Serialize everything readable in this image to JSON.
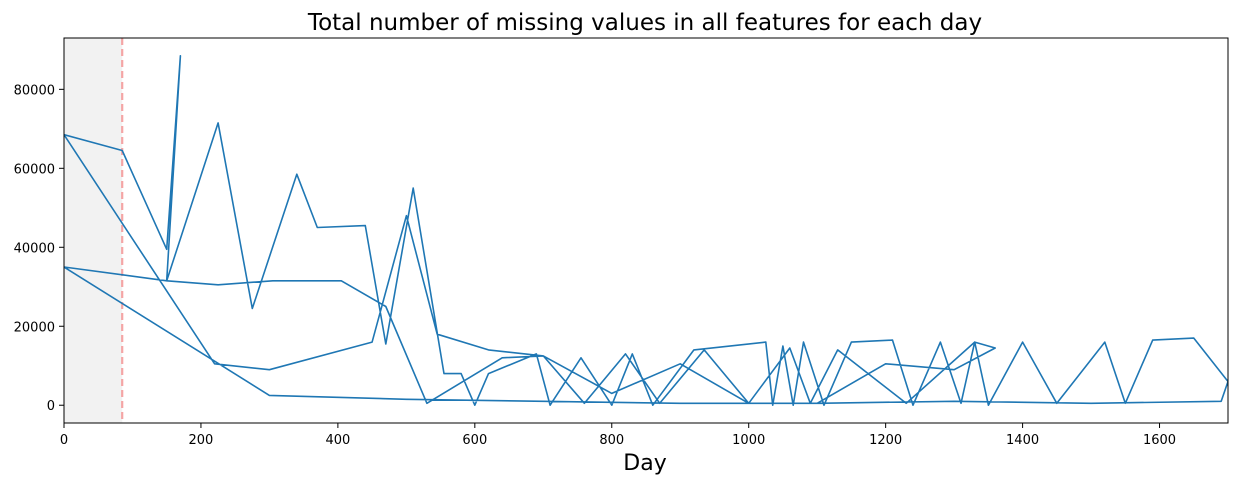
{
  "chart_data": {
    "type": "line",
    "title": "Total number of missing values in all features for each day",
    "xlabel": "Day",
    "ylabel": "",
    "xlim": [
      0,
      1700
    ],
    "ylim": [
      -4500,
      93000
    ],
    "x_ticks": [
      0,
      200,
      400,
      600,
      800,
      1000,
      1200,
      1400,
      1600
    ],
    "y_ticks": [
      0,
      20000,
      40000,
      60000,
      80000
    ],
    "grid": false,
    "legend": "none",
    "line_color": "#1f77b4",
    "shaded_region": {
      "x_start": 0,
      "x_end": 85,
      "color": "#f2f2f2"
    },
    "vline": {
      "x": 85,
      "color": "#f4a5a5",
      "style": "dashed"
    },
    "series": [
      {
        "x": [
          0,
          85,
          150,
          170,
          150,
          225,
          275,
          340,
          370,
          440,
          470,
          510,
          555,
          580,
          600,
          620,
          690,
          710,
          755,
          800,
          830,
          860,
          920,
          1025,
          1035,
          1050,
          1065,
          1080,
          1110,
          1150,
          1210,
          1240,
          1280,
          1310,
          1330,
          1350,
          1400,
          1450,
          1520,
          1550,
          1590,
          1650,
          1700,
          1690,
          1500,
          1300,
          1100,
          900,
          700,
          500,
          300,
          0,
          150,
          225,
          305,
          405,
          470,
          530,
          640,
          700,
          760,
          820,
          870,
          935,
          1000,
          1060,
          1090,
          1130,
          1230,
          1330,
          1360,
          1300,
          1200,
          1100,
          1000,
          900,
          800,
          700,
          620,
          545,
          500,
          450,
          300,
          220,
          0
        ],
        "y": [
          68500,
          64500,
          39500,
          88500,
          31500,
          71500,
          24500,
          58500,
          45000,
          45500,
          15500,
          55000,
          8000,
          8000,
          0,
          8000,
          13000,
          0,
          12000,
          0,
          13000,
          0,
          14000,
          16000,
          0,
          15000,
          0,
          16000,
          0,
          16000,
          16500,
          0,
          16000,
          500,
          16000,
          0,
          16000,
          500,
          16000,
          500,
          16500,
          17000,
          6000,
          1000,
          500,
          1000,
          500,
          500,
          1000,
          1500,
          2500,
          35000,
          31500,
          30500,
          31500,
          31500,
          25000,
          500,
          12000,
          12500,
          500,
          13000,
          500,
          14000,
          500,
          14500,
          500,
          14000,
          500,
          16000,
          14500,
          9000,
          10500,
          500,
          500,
          10500,
          3000,
          12500,
          14000,
          18000,
          48000,
          16000,
          9000,
          10500,
          68500
        ]
      }
    ]
  }
}
